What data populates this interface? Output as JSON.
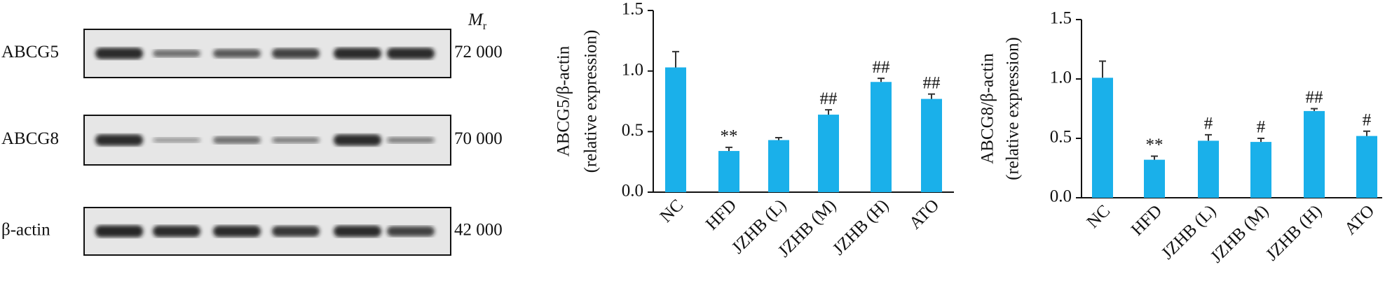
{
  "blot": {
    "rows": [
      {
        "label": "ABCG5",
        "mw": "72 000"
      },
      {
        "label": "ABCG8",
        "mw": "70 000"
      },
      {
        "label": "β-actin",
        "mw": "42 000"
      }
    ],
    "mr_label": {
      "main": "M",
      "sub": "r"
    }
  },
  "chart_data": [
    {
      "type": "bar",
      "ylabel": [
        "ABCG5/β-actin",
        "(relative expression)"
      ],
      "categories": [
        "NC",
        "HFD",
        "JZHB (L)",
        "JZHB (M)",
        "JZHB (H)",
        "ATO"
      ],
      "values": [
        1.03,
        0.34,
        0.43,
        0.64,
        0.91,
        0.77
      ],
      "errors": [
        0.13,
        0.03,
        0.02,
        0.04,
        0.03,
        0.04
      ],
      "annotations": [
        null,
        "**",
        null,
        "##",
        "##",
        "##"
      ],
      "color": "#1ab0ea",
      "ylim": [
        0,
        1.5
      ],
      "yticks": [
        {
          "value": 0,
          "label": "0.0"
        },
        0.5,
        {
          "value": 1,
          "label": "1.0"
        },
        1.5
      ]
    },
    {
      "type": "bar",
      "ylabel": [
        "ABCG8/β-actin",
        "(relative expression)"
      ],
      "categories": [
        "NC",
        "HFD",
        "JZHB (L)",
        "JZHB (M)",
        "JZHB (H)",
        "ATO"
      ],
      "values": [
        1.01,
        0.32,
        0.48,
        0.47,
        0.73,
        0.52
      ],
      "errors": [
        0.14,
        0.03,
        0.05,
        0.03,
        0.02,
        0.04
      ],
      "annotations": [
        null,
        "**",
        "#",
        "#",
        "##",
        "#"
      ],
      "color": "#1ab0ea",
      "ylim": [
        0,
        1.5
      ],
      "yticks": [
        {
          "value": 0,
          "label": "0.0"
        },
        0.5,
        {
          "value": 1,
          "label": "1.0"
        },
        1.5
      ]
    }
  ]
}
